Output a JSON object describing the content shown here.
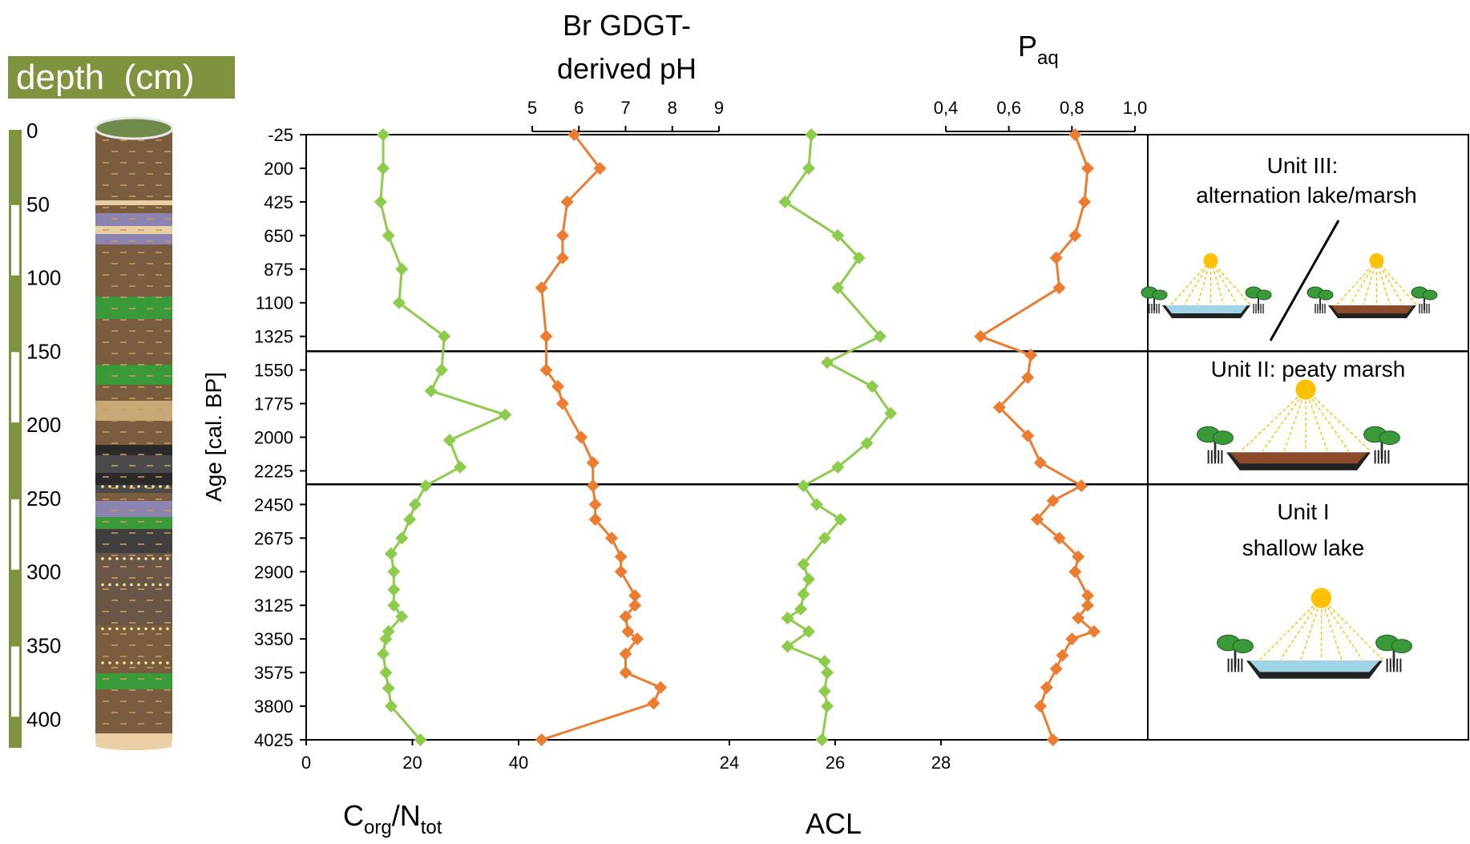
{
  "depth_panel": {
    "title": "depth  (cm)",
    "ticks": [
      "0",
      "50",
      "100",
      "150",
      "200",
      "250",
      "300",
      "350",
      "400"
    ],
    "tick_values": [
      0,
      50,
      100,
      150,
      200,
      250,
      300,
      350,
      400
    ],
    "scale_color": "#7f933e"
  },
  "titles": {
    "ph_line1": "Br GDGT-",
    "ph_line2": "derived pH",
    "paq_main": "P",
    "paq_sub": "aq",
    "cn_main1": "C",
    "cn_sub1": "org",
    "cn_main2": "/N",
    "cn_sub2": "tot",
    "acl": "ACL",
    "y_axis": "Age [cal. BP]"
  },
  "units": [
    {
      "id": "unit-iii",
      "lines": [
        "Unit III:",
        "alternation lake/marsh"
      ]
    },
    {
      "id": "unit-ii",
      "lines": [
        "Unit II: peaty marsh"
      ]
    },
    {
      "id": "unit-i",
      "lines": [
        "Unit I",
        "shallow lake"
      ]
    }
  ],
  "colors": {
    "green": "#8ccc4a",
    "orange": "#ec7c30",
    "axis": "#000000",
    "sun": "#ffc000",
    "water": "#9fd4e6",
    "peat": "#8b4a2a",
    "tree": "#3a9a3a"
  },
  "chart_data": [
    {
      "type": "line",
      "title": "",
      "ylabel": "Age [cal. BP]",
      "yticks": [
        "-25",
        "200",
        "425",
        "650",
        "875",
        "1100",
        "1325",
        "1550",
        "1775",
        "2000",
        "2225",
        "2450",
        "2675",
        "2900",
        "3125",
        "3350",
        "3575",
        "3800",
        "4025"
      ],
      "ylim": [
        -25,
        4025
      ],
      "y_inverted": true,
      "unit_boundaries_age": [
        1425,
        2315
      ],
      "series": [
        {
          "name": "Corg/Ntot",
          "axis": "bottom-left",
          "xlabel": "Corg/Ntot",
          "xticks": [
            "0",
            "20",
            "40"
          ],
          "xlim": [
            0,
            40
          ],
          "color": "#8ccc4a",
          "points": [
            {
              "y": -25,
              "x": 14.5
            },
            {
              "y": 200,
              "x": 14.5
            },
            {
              "y": 425,
              "x": 14.0
            },
            {
              "y": 650,
              "x": 15.5
            },
            {
              "y": 875,
              "x": 18.0
            },
            {
              "y": 1100,
              "x": 17.5
            },
            {
              "y": 1325,
              "x": 26.0
            },
            {
              "y": 1550,
              "x": 25.5
            },
            {
              "y": 1690,
              "x": 23.5
            },
            {
              "y": 1850,
              "x": 37.5
            },
            {
              "y": 2020,
              "x": 27.0
            },
            {
              "y": 2200,
              "x": 29.0
            },
            {
              "y": 2325,
              "x": 22.5
            },
            {
              "y": 2450,
              "x": 20.5
            },
            {
              "y": 2550,
              "x": 19.5
            },
            {
              "y": 2675,
              "x": 18.0
            },
            {
              "y": 2780,
              "x": 16.0
            },
            {
              "y": 2900,
              "x": 16.5
            },
            {
              "y": 3020,
              "x": 16.5
            },
            {
              "y": 3125,
              "x": 16.5
            },
            {
              "y": 3200,
              "x": 18.0
            },
            {
              "y": 3300,
              "x": 15.5
            },
            {
              "y": 3350,
              "x": 15.0
            },
            {
              "y": 3450,
              "x": 14.5
            },
            {
              "y": 3575,
              "x": 15.0
            },
            {
              "y": 3680,
              "x": 15.5
            },
            {
              "y": 3800,
              "x": 16.0
            },
            {
              "y": 4025,
              "x": 21.5
            }
          ]
        },
        {
          "name": "Br GDGT-derived pH",
          "axis": "top-left",
          "xlabel": "Br GDGT-derived pH",
          "xticks": [
            "5",
            "6",
            "7",
            "8",
            "9"
          ],
          "xlim": [
            5,
            9
          ],
          "color": "#ec7c30",
          "points": [
            {
              "y": -25,
              "x": 5.9
            },
            {
              "y": 200,
              "x": 6.45
            },
            {
              "y": 425,
              "x": 5.75
            },
            {
              "y": 650,
              "x": 5.65
            },
            {
              "y": 800,
              "x": 5.65
            },
            {
              "y": 1000,
              "x": 5.2
            },
            {
              "y": 1325,
              "x": 5.3
            },
            {
              "y": 1550,
              "x": 5.3
            },
            {
              "y": 1660,
              "x": 5.55
            },
            {
              "y": 1775,
              "x": 5.65
            },
            {
              "y": 2000,
              "x": 6.05
            },
            {
              "y": 2170,
              "x": 6.3
            },
            {
              "y": 2325,
              "x": 6.3
            },
            {
              "y": 2450,
              "x": 6.35
            },
            {
              "y": 2550,
              "x": 6.35
            },
            {
              "y": 2675,
              "x": 6.7
            },
            {
              "y": 2800,
              "x": 6.9
            },
            {
              "y": 2900,
              "x": 6.9
            },
            {
              "y": 3060,
              "x": 7.2
            },
            {
              "y": 3125,
              "x": 7.2
            },
            {
              "y": 3200,
              "x": 7.0
            },
            {
              "y": 3300,
              "x": 7.05
            },
            {
              "y": 3350,
              "x": 7.25
            },
            {
              "y": 3450,
              "x": 7.0
            },
            {
              "y": 3575,
              "x": 7.0
            },
            {
              "y": 3675,
              "x": 7.75
            },
            {
              "y": 3780,
              "x": 7.6
            },
            {
              "y": 4025,
              "x": 5.2
            }
          ]
        },
        {
          "name": "ACL",
          "axis": "bottom-right",
          "xlabel": "ACL",
          "xticks": [
            "24",
            "26",
            "28"
          ],
          "xlim": [
            24,
            28
          ],
          "color": "#8ccc4a",
          "points": [
            {
              "y": -25,
              "x": 25.55
            },
            {
              "y": 200,
              "x": 25.5
            },
            {
              "y": 425,
              "x": 25.05
            },
            {
              "y": 650,
              "x": 26.05
            },
            {
              "y": 800,
              "x": 26.45
            },
            {
              "y": 1000,
              "x": 26.05
            },
            {
              "y": 1325,
              "x": 26.85
            },
            {
              "y": 1500,
              "x": 25.85
            },
            {
              "y": 1660,
              "x": 26.7
            },
            {
              "y": 1840,
              "x": 27.05
            },
            {
              "y": 2040,
              "x": 26.6
            },
            {
              "y": 2200,
              "x": 26.05
            },
            {
              "y": 2325,
              "x": 25.4
            },
            {
              "y": 2450,
              "x": 25.65
            },
            {
              "y": 2550,
              "x": 26.1
            },
            {
              "y": 2675,
              "x": 25.8
            },
            {
              "y": 2850,
              "x": 25.4
            },
            {
              "y": 2950,
              "x": 25.5
            },
            {
              "y": 3050,
              "x": 25.4
            },
            {
              "y": 3150,
              "x": 25.35
            },
            {
              "y": 3210,
              "x": 25.1
            },
            {
              "y": 3300,
              "x": 25.5
            },
            {
              "y": 3400,
              "x": 25.1
            },
            {
              "y": 3500,
              "x": 25.8
            },
            {
              "y": 3575,
              "x": 25.85
            },
            {
              "y": 3700,
              "x": 25.8
            },
            {
              "y": 3800,
              "x": 25.85
            },
            {
              "y": 4025,
              "x": 25.75
            }
          ]
        },
        {
          "name": "Paq",
          "axis": "top-right",
          "xlabel": "Paq",
          "xticks": [
            "0,4",
            "0,6",
            "0,8",
            "1,0"
          ],
          "xlim": [
            0.4,
            1.0
          ],
          "color": "#ec7c30",
          "points": [
            {
              "y": -25,
              "x": 0.81
            },
            {
              "y": 200,
              "x": 0.85
            },
            {
              "y": 425,
              "x": 0.84
            },
            {
              "y": 650,
              "x": 0.81
            },
            {
              "y": 800,
              "x": 0.75
            },
            {
              "y": 1000,
              "x": 0.76
            },
            {
              "y": 1325,
              "x": 0.51
            },
            {
              "y": 1450,
              "x": 0.67
            },
            {
              "y": 1600,
              "x": 0.66
            },
            {
              "y": 1800,
              "x": 0.57
            },
            {
              "y": 1990,
              "x": 0.66
            },
            {
              "y": 2170,
              "x": 0.7
            },
            {
              "y": 2325,
              "x": 0.83
            },
            {
              "y": 2425,
              "x": 0.74
            },
            {
              "y": 2550,
              "x": 0.69
            },
            {
              "y": 2675,
              "x": 0.76
            },
            {
              "y": 2800,
              "x": 0.82
            },
            {
              "y": 2900,
              "x": 0.81
            },
            {
              "y": 3060,
              "x": 0.85
            },
            {
              "y": 3125,
              "x": 0.85
            },
            {
              "y": 3210,
              "x": 0.82
            },
            {
              "y": 3300,
              "x": 0.87
            },
            {
              "y": 3350,
              "x": 0.8
            },
            {
              "y": 3460,
              "x": 0.77
            },
            {
              "y": 3550,
              "x": 0.75
            },
            {
              "y": 3675,
              "x": 0.72
            },
            {
              "y": 3800,
              "x": 0.7
            },
            {
              "y": 4025,
              "x": 0.74
            }
          ]
        }
      ]
    }
  ]
}
